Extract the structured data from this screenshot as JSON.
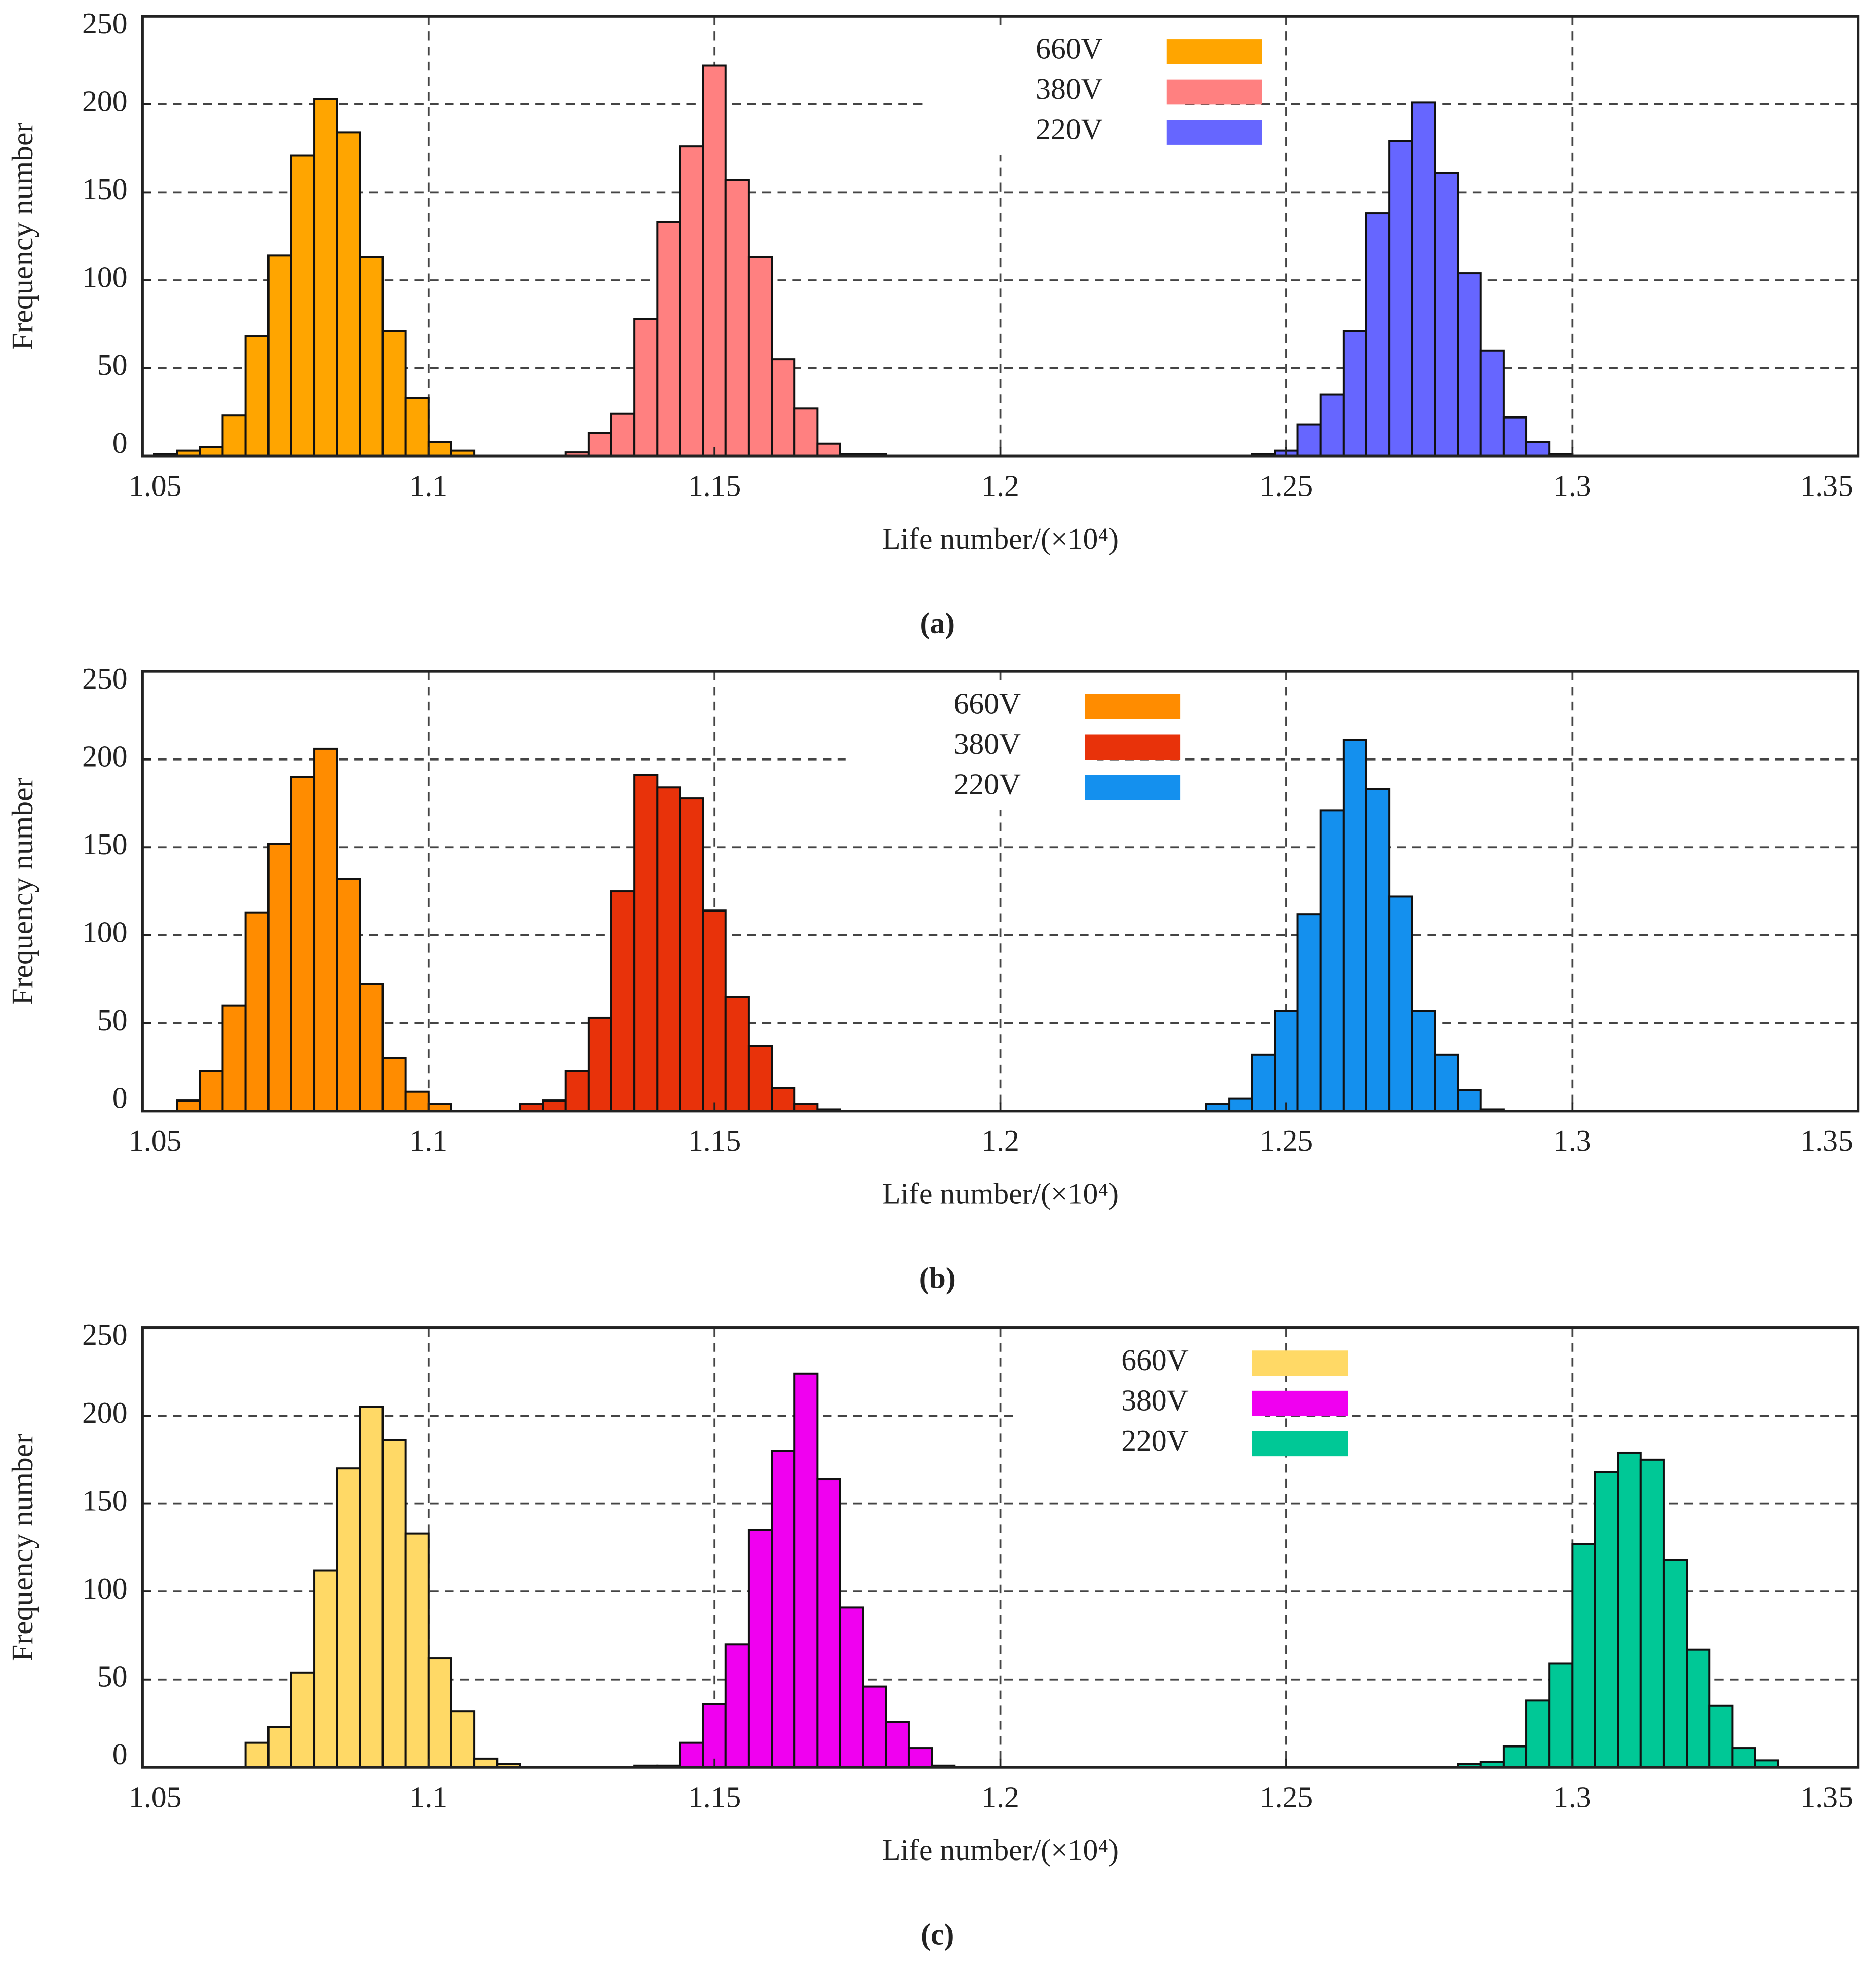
{
  "chart_data": [
    {
      "type": "histogram",
      "xlabel": "Life number/(×10⁴)",
      "ylabel": "Frequency number",
      "caption": "(a)",
      "xlim": [
        1.05,
        1.35
      ],
      "ylim": [
        0,
        250
      ],
      "xticks": [
        1.05,
        1.1,
        1.15,
        1.2,
        1.25,
        1.3,
        1.35
      ],
      "yticks": [
        0,
        50,
        100,
        150,
        200,
        250
      ],
      "grid": true,
      "legend": "upper center",
      "series": [
        {
          "name": "660V",
          "color": "#FFA500",
          "bins": [
            1.052,
            1.056,
            1.06,
            1.064,
            1.068,
            1.072,
            1.076,
            1.08,
            1.084,
            1.088,
            1.092,
            1.096,
            1.1,
            1.104,
            1.108
          ],
          "values": [
            1,
            3,
            5,
            23,
            68,
            114,
            171,
            203,
            184,
            113,
            71,
            33,
            8,
            3
          ]
        },
        {
          "name": "380V",
          "color": "#FF8080",
          "bins": [
            1.124,
            1.128,
            1.132,
            1.136,
            1.14,
            1.144,
            1.148,
            1.152,
            1.156,
            1.16,
            1.164,
            1.168,
            1.172,
            1.176,
            1.18
          ],
          "values": [
            2,
            13,
            24,
            78,
            133,
            176,
            222,
            157,
            113,
            55,
            27,
            7,
            1,
            1
          ]
        },
        {
          "name": "220V",
          "color": "#6666FF",
          "bins": [
            1.244,
            1.248,
            1.252,
            1.256,
            1.26,
            1.264,
            1.268,
            1.272,
            1.276,
            1.28,
            1.284,
            1.288,
            1.292,
            1.296,
            1.3
          ],
          "values": [
            1,
            3,
            18,
            35,
            71,
            138,
            179,
            201,
            161,
            104,
            60,
            22,
            8,
            1
          ]
        }
      ]
    },
    {
      "type": "histogram",
      "xlabel": "Life number/(×10⁴)",
      "ylabel": "Frequency number",
      "caption": "(b)",
      "xlim": [
        1.05,
        1.35
      ],
      "ylim": [
        0,
        250
      ],
      "xticks": [
        1.05,
        1.1,
        1.15,
        1.2,
        1.25,
        1.3,
        1.35
      ],
      "yticks": [
        0,
        50,
        100,
        150,
        200,
        250
      ],
      "grid": true,
      "legend": "upper center",
      "series": [
        {
          "name": "660V",
          "color": "#FF8C00",
          "bins": [
            1.056,
            1.06,
            1.064,
            1.068,
            1.072,
            1.076,
            1.08,
            1.084,
            1.088,
            1.092,
            1.096,
            1.1,
            1.104
          ],
          "values": [
            6,
            23,
            60,
            113,
            152,
            190,
            206,
            132,
            72,
            30,
            11,
            4
          ]
        },
        {
          "name": "380V",
          "color": "#E8320A",
          "bins": [
            1.116,
            1.12,
            1.124,
            1.128,
            1.132,
            1.136,
            1.14,
            1.144,
            1.148,
            1.152,
            1.156,
            1.16,
            1.164,
            1.168,
            1.172
          ],
          "values": [
            4,
            6,
            23,
            53,
            125,
            191,
            184,
            178,
            114,
            65,
            37,
            13,
            4,
            1
          ]
        },
        {
          "name": "220V",
          "color": "#1490EE",
          "bins": [
            1.236,
            1.24,
            1.244,
            1.248,
            1.252,
            1.256,
            1.26,
            1.264,
            1.268,
            1.272,
            1.276,
            1.28,
            1.284,
            1.288
          ],
          "values": [
            4,
            7,
            32,
            57,
            112,
            171,
            211,
            183,
            122,
            57,
            32,
            12,
            1
          ]
        }
      ]
    },
    {
      "type": "histogram",
      "xlabel": "Life number/(×10⁴)",
      "ylabel": "Frequency number",
      "caption": "(c)",
      "xlim": [
        1.05,
        1.35
      ],
      "ylim": [
        0,
        250
      ],
      "xticks": [
        1.05,
        1.1,
        1.15,
        1.2,
        1.25,
        1.3,
        1.35
      ],
      "yticks": [
        0,
        50,
        100,
        150,
        200,
        250
      ],
      "grid": true,
      "legend": "upper center",
      "series": [
        {
          "name": "660V",
          "color": "#FFD966",
          "bins": [
            1.068,
            1.072,
            1.076,
            1.08,
            1.084,
            1.088,
            1.092,
            1.096,
            1.1,
            1.104,
            1.108,
            1.112,
            1.116
          ],
          "values": [
            14,
            23,
            54,
            112,
            170,
            205,
            186,
            133,
            62,
            32,
            5,
            2
          ]
        },
        {
          "name": "380V",
          "color": "#F000F0",
          "bins": [
            1.136,
            1.14,
            1.144,
            1.148,
            1.152,
            1.156,
            1.16,
            1.164,
            1.168,
            1.172,
            1.176,
            1.18,
            1.184,
            1.188,
            1.192
          ],
          "values": [
            1,
            1,
            14,
            36,
            70,
            135,
            180,
            224,
            164,
            91,
            46,
            26,
            11,
            1
          ]
        },
        {
          "name": "220V",
          "color": "#00C896",
          "bins": [
            1.28,
            1.284,
            1.288,
            1.292,
            1.296,
            1.3,
            1.304,
            1.308,
            1.312,
            1.316,
            1.32,
            1.324,
            1.328,
            1.332,
            1.336
          ],
          "values": [
            2,
            3,
            12,
            38,
            59,
            127,
            168,
            179,
            175,
            118,
            67,
            35,
            11,
            4
          ]
        }
      ]
    }
  ]
}
